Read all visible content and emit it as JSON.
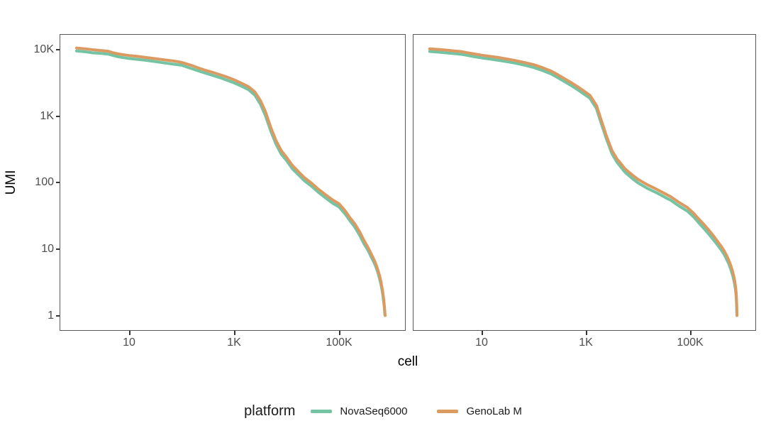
{
  "accent_colors": {
    "teal": "#74C3A2",
    "orange": "#DB9A62",
    "panel_border": "#595959",
    "tick_mark": "#333333",
    "tick_label": "#4d4d4d"
  },
  "chart_data": {
    "type": "line",
    "title": "",
    "xlabel": "cell",
    "ylabel": "UMI",
    "x_scale": "log10",
    "y_scale": "log10",
    "grid": "off",
    "facets": 2,
    "x_tick_labels": [
      "10",
      "1K",
      "100K"
    ],
    "x_tick_values": [
      10,
      1000,
      100000
    ],
    "y_tick_labels": [
      "10K",
      "1K",
      "100",
      "10",
      "1"
    ],
    "y_tick_values": [
      10000,
      1000,
      100,
      10,
      1
    ],
    "x_range_log10": [
      -0.31,
      6.26
    ],
    "y_range_log10": [
      -0.22,
      4.22
    ],
    "legend": {
      "title": "platform",
      "position": "bottom",
      "entries": [
        {
          "label": "NovaSeq6000",
          "color": "#74C3A2"
        },
        {
          "label": "GenoLab M",
          "color": "#DB9A62"
        }
      ]
    },
    "panels": [
      {
        "series": [
          {
            "name": "NovaSeq6000",
            "color": "#74C3A2",
            "points": [
              [
                1,
                9500
              ],
              [
                1.5,
                9200
              ],
              [
                2,
                8900
              ],
              [
                3,
                8700
              ],
              [
                4,
                8500
              ],
              [
                5,
                8100
              ],
              [
                6,
                7800
              ],
              [
                8,
                7500
              ],
              [
                10,
                7300
              ],
              [
                14,
                7100
              ],
              [
                20,
                6900
              ],
              [
                30,
                6600
              ],
              [
                45,
                6300
              ],
              [
                70,
                6000
              ],
              [
                100,
                5800
              ],
              [
                150,
                5200
              ],
              [
                220,
                4700
              ],
              [
                300,
                4350
              ],
              [
                400,
                4050
              ],
              [
                550,
                3750
              ],
              [
                700,
                3500
              ],
              [
                1000,
                3150
              ],
              [
                1400,
                2800
              ],
              [
                1900,
                2480
              ],
              [
                2500,
                2050
              ],
              [
                3200,
                1500
              ],
              [
                4000,
                1000
              ],
              [
                5000,
                600
              ],
              [
                6300,
                380
              ],
              [
                8000,
                265
              ],
              [
                10000,
                215
              ],
              [
                13000,
                160
              ],
              [
                17000,
                130
              ],
              [
                22000,
                106
              ],
              [
                30000,
                88
              ],
              [
                40000,
                72
              ],
              [
                55000,
                59
              ],
              [
                75000,
                49
              ],
              [
                100000,
                43
              ],
              [
                130000,
                34
              ],
              [
                160000,
                27
              ],
              [
                200000,
                21.5
              ],
              [
                250000,
                16
              ],
              [
                300000,
                12
              ],
              [
                360000,
                9.5
              ],
              [
                420000,
                7.4
              ],
              [
                480000,
                6
              ],
              [
                520000,
                5.1
              ],
              [
                560000,
                4.3
              ],
              [
                600000,
                3.5
              ],
              [
                635000,
                2.9
              ],
              [
                665000,
                2.4
              ],
              [
                695000,
                1.9
              ],
              [
                718000,
                1.55
              ],
              [
                736000,
                1.3
              ],
              [
                750000,
                1.05
              ],
              [
                760000,
                1
              ],
              [
                763000,
                1
              ]
            ]
          },
          {
            "name": "GenoLab M",
            "color": "#DB9A62",
            "points": [
              [
                1,
                10500
              ],
              [
                1.5,
                10200
              ],
              [
                2,
                9900
              ],
              [
                3,
                9600
              ],
              [
                4,
                9400
              ],
              [
                5,
                8900
              ],
              [
                6,
                8600
              ],
              [
                8,
                8300
              ],
              [
                10,
                8100
              ],
              [
                14,
                7900
              ],
              [
                20,
                7600
              ],
              [
                30,
                7300
              ],
              [
                45,
                7000
              ],
              [
                70,
                6700
              ],
              [
                100,
                6400
              ],
              [
                150,
                5800
              ],
              [
                220,
                5200
              ],
              [
                300,
                4800
              ],
              [
                400,
                4500
              ],
              [
                550,
                4150
              ],
              [
                700,
                3900
              ],
              [
                1000,
                3500
              ],
              [
                1400,
                3100
              ],
              [
                1900,
                2750
              ],
              [
                2500,
                2300
              ],
              [
                3200,
                1700
              ],
              [
                4000,
                1150
              ],
              [
                5000,
                680
              ],
              [
                6300,
                430
              ],
              [
                8000,
                300
              ],
              [
                10000,
                240
              ],
              [
                13000,
                180
              ],
              [
                17000,
                145
              ],
              [
                22000,
                118
              ],
              [
                30000,
                98
              ],
              [
                40000,
                80
              ],
              [
                55000,
                66
              ],
              [
                75000,
                55
              ],
              [
                100000,
                48
              ],
              [
                130000,
                38
              ],
              [
                160000,
                30
              ],
              [
                200000,
                24
              ],
              [
                250000,
                18
              ],
              [
                300000,
                13.5
              ],
              [
                360000,
                10.5
              ],
              [
                420000,
                8.2
              ],
              [
                480000,
                6.6
              ],
              [
                520000,
                5.6
              ],
              [
                560000,
                4.7
              ],
              [
                600000,
                3.9
              ],
              [
                635000,
                3.2
              ],
              [
                665000,
                2.6
              ],
              [
                695000,
                2.1
              ],
              [
                718000,
                1.7
              ],
              [
                736000,
                1.4
              ],
              [
                750000,
                1.15
              ],
              [
                760000,
                1
              ],
              [
                763000,
                1
              ]
            ]
          }
        ]
      },
      {
        "series": [
          {
            "name": "NovaSeq6000",
            "color": "#74C3A2",
            "points": [
              [
                1,
                9300
              ],
              [
                1.5,
                9100
              ],
              [
                2,
                8900
              ],
              [
                3,
                8650
              ],
              [
                4,
                8450
              ],
              [
                5,
                8200
              ],
              [
                7,
                7800
              ],
              [
                10,
                7450
              ],
              [
                14,
                7200
              ],
              [
                20,
                6900
              ],
              [
                30,
                6550
              ],
              [
                45,
                6200
              ],
              [
                70,
                5750
              ],
              [
                100,
                5350
              ],
              [
                150,
                4800
              ],
              [
                220,
                4250
              ],
              [
                300,
                3700
              ],
              [
                400,
                3250
              ],
              [
                550,
                2800
              ],
              [
                700,
                2480
              ],
              [
                900,
                2160
              ],
              [
                1200,
                1850
              ],
              [
                1600,
                1300
              ],
              [
                2000,
                760
              ],
              [
                2500,
                450
              ],
              [
                3200,
                270
              ],
              [
                4000,
                200
              ],
              [
                5700,
                142
              ],
              [
                8000,
                113
              ],
              [
                10000,
                99
              ],
              [
                15000,
                82
              ],
              [
                23000,
                70
              ],
              [
                33000,
                60
              ],
              [
                43000,
                54
              ],
              [
                60000,
                45
              ],
              [
                90000,
                37
              ],
              [
                120000,
                30
              ],
              [
                150000,
                24.5
              ],
              [
                190000,
                20
              ],
              [
                235000,
                16.5
              ],
              [
                290000,
                13.5
              ],
              [
                340000,
                11.5
              ],
              [
                400000,
                9.7
              ],
              [
                460000,
                8.2
              ],
              [
                510000,
                7
              ],
              [
                560000,
                6
              ],
              [
                610000,
                5
              ],
              [
                655000,
                4.2
              ],
              [
                695000,
                3.5
              ],
              [
                730000,
                2.9
              ],
              [
                758000,
                2.4
              ],
              [
                778000,
                1.9
              ],
              [
                792000,
                1.5
              ],
              [
                800000,
                1.15
              ],
              [
                804000,
                1
              ]
            ]
          },
          {
            "name": "GenoLab M",
            "color": "#DB9A62",
            "points": [
              [
                1,
                10200
              ],
              [
                1.5,
                10000
              ],
              [
                2,
                9800
              ],
              [
                3,
                9500
              ],
              [
                4,
                9300
              ],
              [
                5,
                9000
              ],
              [
                7,
                8600
              ],
              [
                10,
                8200
              ],
              [
                14,
                7900
              ],
              [
                20,
                7600
              ],
              [
                30,
                7200
              ],
              [
                45,
                6800
              ],
              [
                70,
                6300
              ],
              [
                100,
                5900
              ],
              [
                150,
                5300
              ],
              [
                220,
                4700
              ],
              [
                300,
                4100
              ],
              [
                400,
                3600
              ],
              [
                550,
                3100
              ],
              [
                700,
                2750
              ],
              [
                900,
                2400
              ],
              [
                1200,
                2050
              ],
              [
                1600,
                1450
              ],
              [
                2000,
                850
              ],
              [
                2500,
                500
              ],
              [
                3200,
                300
              ],
              [
                4000,
                225
              ],
              [
                5700,
                160
              ],
              [
                8000,
                128
              ],
              [
                10000,
                112
              ],
              [
                15000,
                93
              ],
              [
                23000,
                79
              ],
              [
                33000,
                68
              ],
              [
                43000,
                61
              ],
              [
                60000,
                51
              ],
              [
                90000,
                42
              ],
              [
                120000,
                34
              ],
              [
                150000,
                28
              ],
              [
                190000,
                23
              ],
              [
                235000,
                19
              ],
              [
                290000,
                15.5
              ],
              [
                340000,
                13
              ],
              [
                400000,
                11
              ],
              [
                460000,
                9.3
              ],
              [
                510000,
                8
              ],
              [
                560000,
                6.8
              ],
              [
                610000,
                5.7
              ],
              [
                655000,
                4.8
              ],
              [
                695000,
                4
              ],
              [
                730000,
                3.3
              ],
              [
                758000,
                2.7
              ],
              [
                778000,
                2.2
              ],
              [
                792000,
                1.7
              ],
              [
                800000,
                1.3
              ],
              [
                804000,
                1
              ]
            ]
          }
        ]
      }
    ]
  }
}
